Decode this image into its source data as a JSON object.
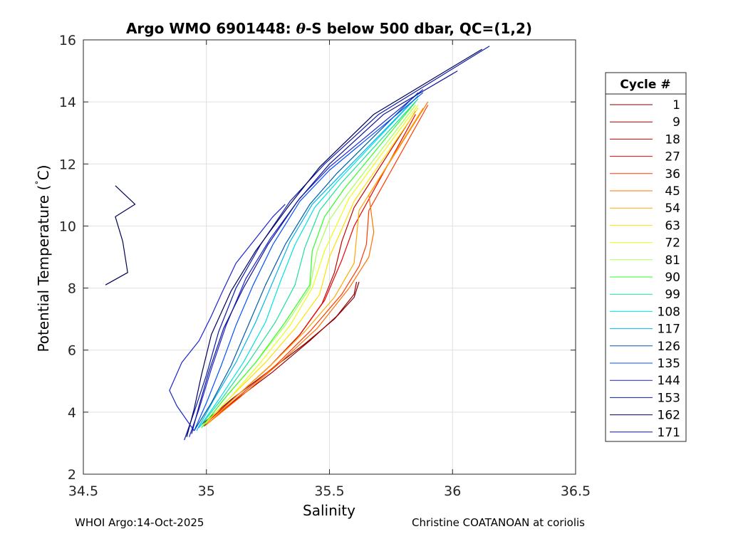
{
  "chart_data": {
    "type": "line",
    "title": "Argo WMO 6901448: θ-S below 500 dbar,  QC=(1,2)",
    "title_prefix": "Argo WMO 6901448: ",
    "title_symbol": "θ",
    "title_suffix": "-S below 500 dbar,  QC=(1,2)",
    "xlabel": "Salinity",
    "ylabel": "Potential Temperature (°C)",
    "ylabel_main": "Potential Temperature (",
    "ylabel_degree": "˚",
    "ylabel_unit": "C)",
    "xlim": [
      34.5,
      36.5
    ],
    "ylim": [
      2,
      16
    ],
    "xticks": [
      34.5,
      35,
      35.5,
      36,
      36.5
    ],
    "xtick_labels": [
      "34.5",
      "35",
      "35.5",
      "36",
      "36.5"
    ],
    "yticks": [
      2,
      4,
      6,
      8,
      10,
      12,
      14,
      16
    ],
    "ytick_labels": [
      "2",
      "4",
      "6",
      "8",
      "10",
      "12",
      "14",
      "16"
    ],
    "grid": true,
    "legend_title": "Cycle #",
    "legend_position": "outside-right",
    "series": [
      {
        "name": "1",
        "color": "#7f0000",
        "x": [
          34.98,
          35.1,
          35.25,
          35.4,
          35.52,
          35.6,
          35.62
        ],
        "y": [
          3.6,
          4.4,
          5.3,
          6.2,
          7.0,
          7.7,
          8.2
        ]
      },
      {
        "name": "9",
        "color": "#9c0000",
        "x": [
          34.99,
          35.12,
          35.27,
          35.42,
          35.53,
          35.6,
          35.61
        ],
        "y": [
          3.55,
          4.4,
          5.3,
          6.3,
          7.1,
          7.8,
          8.2
        ]
      },
      {
        "name": "18",
        "color": "#c80000",
        "x": [
          34.99,
          35.12,
          35.26,
          35.38,
          35.47,
          35.52,
          35.55,
          35.6,
          35.85
        ],
        "y": [
          3.6,
          4.5,
          5.5,
          6.5,
          7.5,
          8.5,
          9.5,
          10.6,
          13.7
        ]
      },
      {
        "name": "27",
        "color": "#f00000",
        "x": [
          34.99,
          35.12,
          35.26,
          35.38,
          35.48,
          35.55,
          35.6,
          35.85
        ],
        "y": [
          3.6,
          4.5,
          5.5,
          6.5,
          7.6,
          8.9,
          10.0,
          13.6
        ]
      },
      {
        "name": "36",
        "color": "#ff3800",
        "x": [
          35.0,
          35.13,
          35.28,
          35.42,
          35.55,
          35.62,
          35.65,
          35.66,
          35.9
        ],
        "y": [
          3.6,
          4.5,
          5.5,
          6.6,
          7.8,
          8.7,
          9.4,
          10.5,
          13.9
        ]
      },
      {
        "name": "45",
        "color": "#ff7000",
        "x": [
          35.0,
          35.14,
          35.3,
          35.45,
          35.58,
          35.66,
          35.68,
          35.66,
          35.9
        ],
        "y": [
          3.6,
          4.5,
          5.6,
          6.7,
          8.0,
          9.0,
          9.8,
          11.0,
          14.0
        ]
      },
      {
        "name": "54",
        "color": "#ffa800",
        "x": [
          35.0,
          35.12,
          35.26,
          35.4,
          35.52,
          35.6,
          35.62,
          35.88
        ],
        "y": [
          3.6,
          4.5,
          5.5,
          6.6,
          7.7,
          8.8,
          10.5,
          13.8
        ]
      },
      {
        "name": "63",
        "color": "#ffe000",
        "x": [
          34.98,
          35.1,
          35.24,
          35.36,
          35.46,
          35.5,
          35.6,
          35.86
        ],
        "y": [
          3.5,
          4.5,
          5.6,
          6.7,
          7.8,
          9.0,
          10.8,
          13.8
        ]
      },
      {
        "name": "72",
        "color": "#e6ff18",
        "x": [
          34.98,
          35.1,
          35.22,
          35.34,
          35.43,
          35.48,
          35.58,
          35.86
        ],
        "y": [
          3.5,
          4.5,
          5.6,
          6.8,
          8.0,
          9.2,
          10.9,
          13.9
        ]
      },
      {
        "name": "81",
        "color": "#a8ff55",
        "x": [
          34.98,
          35.08,
          35.2,
          35.32,
          35.42,
          35.45,
          35.5,
          35.57,
          35.85
        ],
        "y": [
          3.5,
          4.5,
          5.6,
          6.8,
          8.0,
          9.2,
          10.2,
          11.0,
          13.9
        ]
      },
      {
        "name": "90",
        "color": "#2dff28",
        "x": [
          34.98,
          35.08,
          35.2,
          35.32,
          35.42,
          35.43,
          35.48,
          35.56,
          35.85
        ],
        "y": [
          3.5,
          4.5,
          5.6,
          6.9,
          8.1,
          9.2,
          10.3,
          11.2,
          14.0
        ]
      },
      {
        "name": "99",
        "color": "#1edf9e",
        "x": [
          34.97,
          35.06,
          35.17,
          35.28,
          35.36,
          35.4,
          35.46,
          35.55,
          35.86
        ],
        "y": [
          3.5,
          4.4,
          5.6,
          6.9,
          8.1,
          9.3,
          10.5,
          11.4,
          14.1
        ]
      },
      {
        "name": "108",
        "color": "#00e2e2",
        "x": [
          34.97,
          35.05,
          35.15,
          35.24,
          35.3,
          35.36,
          35.44,
          35.54,
          35.86
        ],
        "y": [
          3.5,
          4.4,
          5.6,
          6.9,
          8.2,
          9.4,
          10.6,
          11.5,
          14.2
        ]
      },
      {
        "name": "117",
        "color": "#00b6e8",
        "x": [
          34.96,
          35.03,
          35.12,
          35.2,
          35.27,
          35.34,
          35.43,
          35.54,
          35.86
        ],
        "y": [
          3.4,
          4.4,
          5.6,
          6.9,
          8.2,
          9.5,
          10.7,
          11.6,
          14.2
        ]
      },
      {
        "name": "126",
        "color": "#005aa8",
        "x": [
          34.95,
          35.02,
          35.1,
          35.17,
          35.24,
          35.32,
          35.42,
          35.53,
          35.86
        ],
        "y": [
          3.4,
          4.3,
          5.5,
          6.8,
          8.1,
          9.4,
          10.7,
          11.7,
          14.3
        ]
      },
      {
        "name": "135",
        "color": "#0050ff",
        "x": [
          34.95,
          35.0,
          35.06,
          35.12,
          35.19,
          35.27,
          35.38,
          35.5,
          35.88
        ],
        "y": [
          3.4,
          4.3,
          5.5,
          6.8,
          8.1,
          9.4,
          10.8,
          11.8,
          14.3
        ]
      },
      {
        "name": "144",
        "color": "#1c22d0",
        "x": [
          34.93,
          34.97,
          35.02,
          35.08,
          35.16,
          35.26,
          35.38,
          35.5,
          35.88
        ],
        "y": [
          3.2,
          4.1,
          5.4,
          6.8,
          8.3,
          9.6,
          10.9,
          11.9,
          14.4
        ]
      },
      {
        "name": "153",
        "color": "#0a1ca8",
        "x": [
          34.91,
          34.95,
          35.0,
          35.05,
          35.12,
          35.22,
          35.34,
          35.48,
          35.7,
          36.15
        ],
        "y": [
          3.1,
          4.0,
          5.2,
          6.6,
          8.0,
          9.4,
          10.8,
          12.0,
          13.6,
          15.8
        ]
      },
      {
        "name": "162",
        "color": "#000056",
        "x": [
          34.92,
          34.95,
          34.98,
          35.02,
          35.1,
          35.2,
          35.33,
          35.46,
          35.68,
          36.12
        ],
        "y": [
          3.2,
          4.1,
          5.2,
          6.5,
          7.9,
          9.2,
          10.6,
          11.9,
          13.6,
          15.7
        ]
      },
      {
        "name": "171",
        "color": "#10158f",
        "x": [
          34.94,
          34.97,
          35.01,
          35.07,
          35.15,
          35.25,
          35.37,
          35.5,
          35.72,
          36.02
        ],
        "y": [
          3.3,
          4.2,
          5.3,
          6.7,
          8.0,
          9.4,
          10.8,
          12.0,
          13.6,
          15.0
        ]
      },
      {
        "name": "",
        "color": "#000056",
        "x": [
          34.63,
          34.71,
          34.63,
          34.66,
          34.68,
          34.59
        ],
        "y": [
          11.3,
          10.7,
          10.3,
          9.5,
          8.5,
          8.1
        ]
      },
      {
        "name": "",
        "color": "#1c22d0",
        "x": [
          34.95,
          34.88,
          34.85,
          34.9,
          34.97,
          35.02,
          35.06,
          35.12,
          35.2,
          35.27,
          35.32
        ],
        "y": [
          3.4,
          4.2,
          4.7,
          5.6,
          6.3,
          7.1,
          7.8,
          8.8,
          9.6,
          10.3,
          10.7
        ]
      }
    ]
  },
  "footer": {
    "left": "WHOI Argo:14-Oct-2025",
    "right": "Christine COATANOAN at coriolis"
  }
}
